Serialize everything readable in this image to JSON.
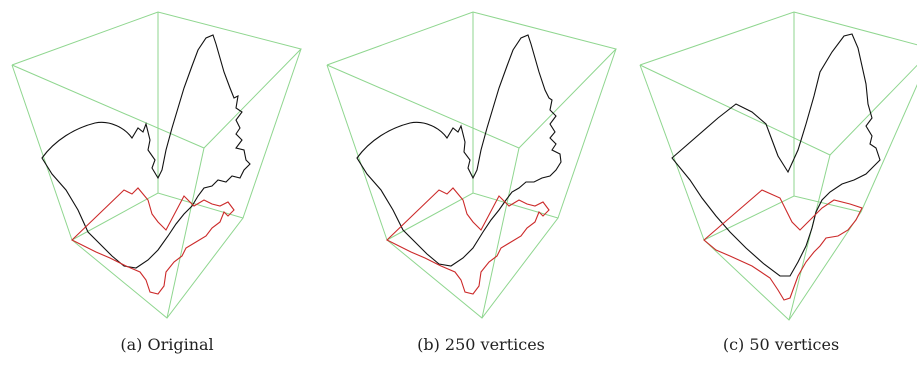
{
  "figure": {
    "panels": [
      {
        "id": "a",
        "caption": "(a) Original"
      },
      {
        "id": "b",
        "caption": "(b) 250 vertices"
      },
      {
        "id": "c",
        "caption": "(c) 50 vertices"
      }
    ],
    "colors": {
      "box": "#8fd68f",
      "curve_top": "#111111",
      "curve_bottom": "#cc2a2a"
    }
  }
}
